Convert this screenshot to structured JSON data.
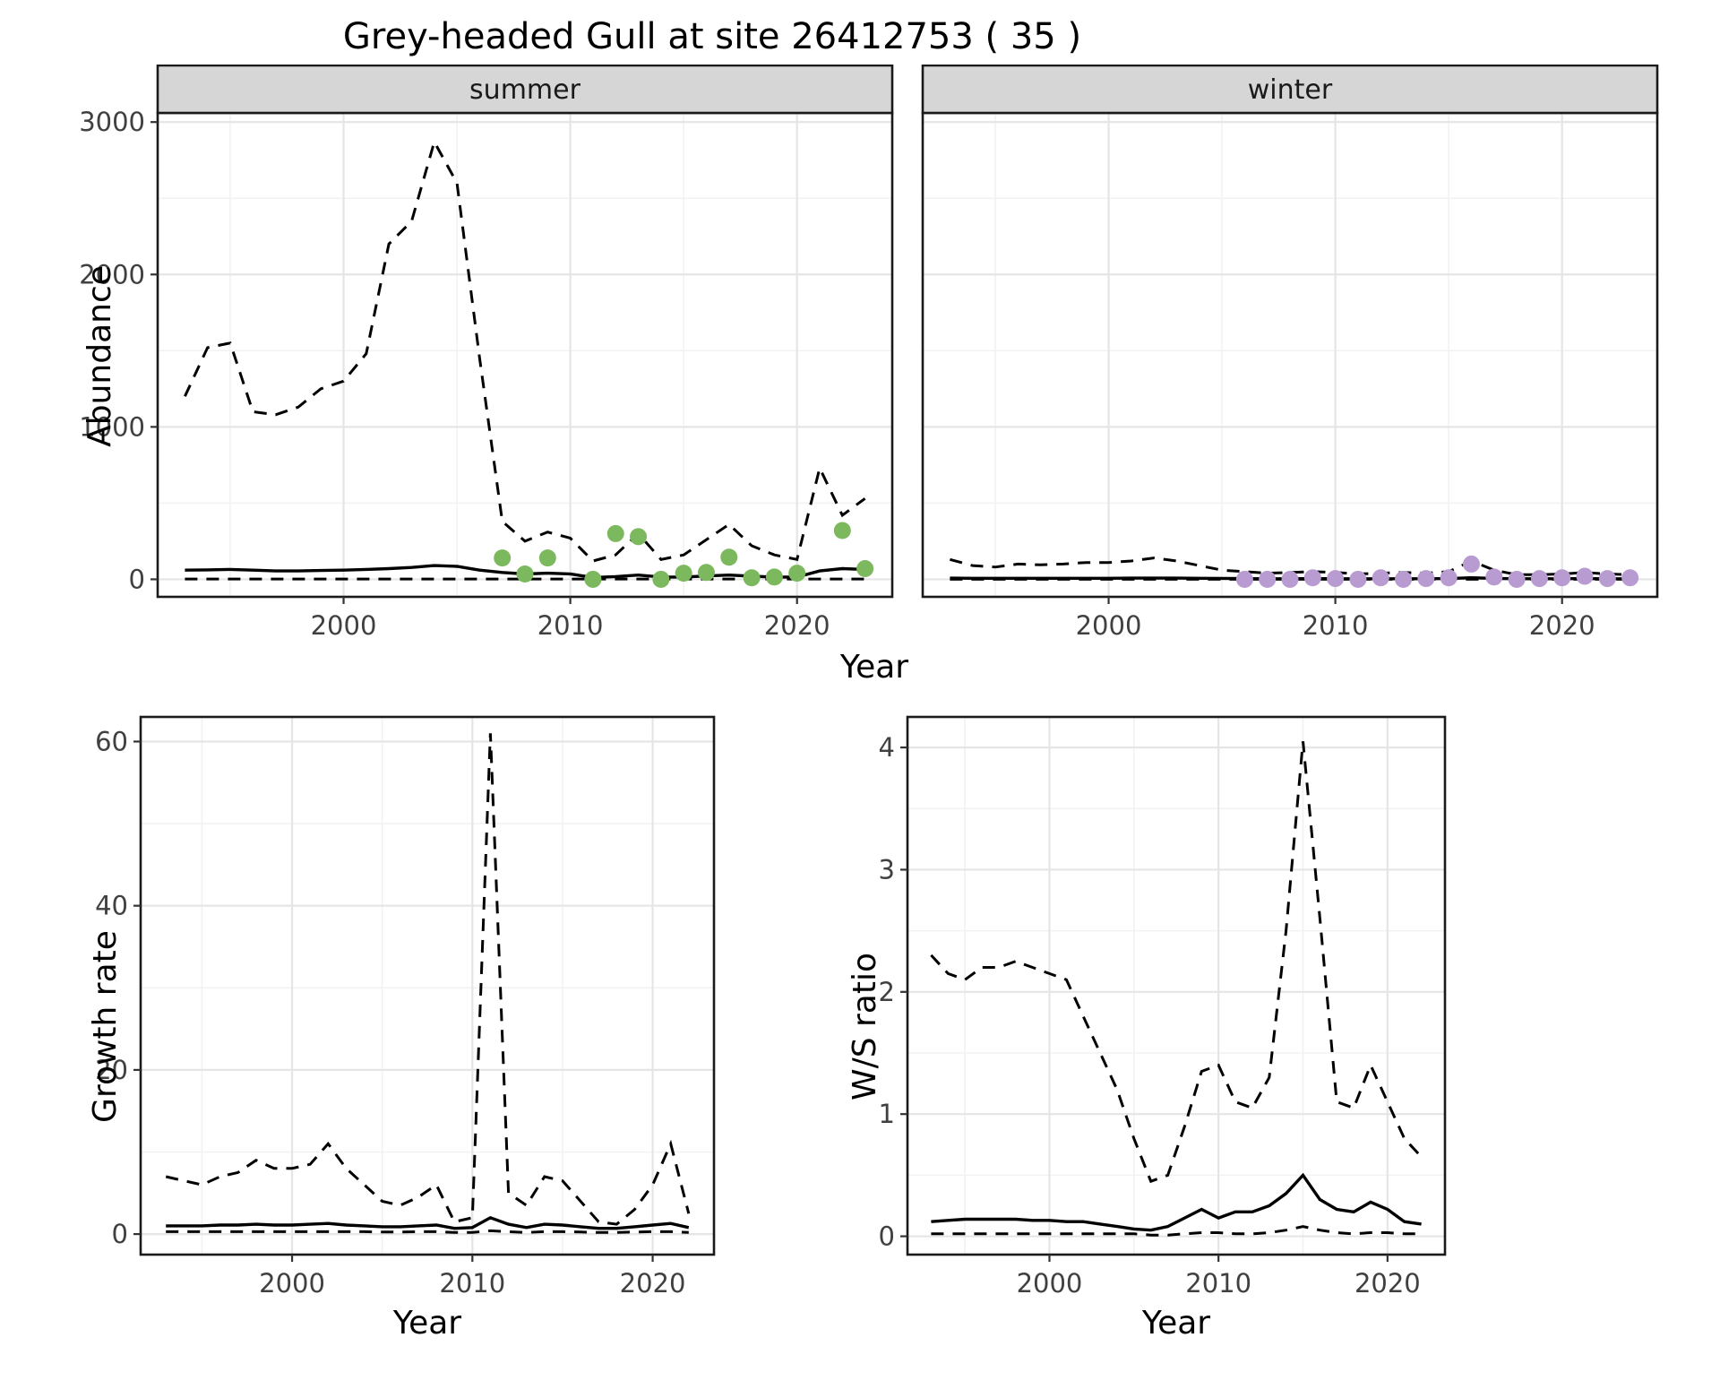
{
  "title": "Grey-headed Gull at site 26412753 ( 35 )",
  "top_row": {
    "ylabel": "Abundance",
    "xlabel": "Year",
    "facets": [
      "summer",
      "winter"
    ]
  },
  "bottom_row": {
    "growth_ylabel": "Growth rate",
    "ws_ylabel": "W/S ratio",
    "xlabel": "Year"
  },
  "colors": {
    "line": "#000000",
    "summer_points": "#7cb95e",
    "winter_points": "#b89bd1",
    "grid_major": "#e5e5e5",
    "grid_minor": "#f2f2f2",
    "strip_fill": "#d6d6d6",
    "strip_text": "#1a1a1a",
    "tick_label": "#404040",
    "tick_mark": "#333333",
    "border": "#1a1a1a",
    "panel_bg": "#ffffff"
  },
  "chart_data": [
    {
      "id": "abundance-summer",
      "type": "line",
      "facet": "summer",
      "xlabel": "Year",
      "ylabel": "Abundance",
      "xlim": [
        1991.8,
        2024.2
      ],
      "ylim": [
        -115,
        3060
      ],
      "xticks": [
        2000,
        2010,
        2020
      ],
      "yticks": [
        0,
        1000,
        2000,
        3000
      ],
      "xminor": [
        1995,
        2005,
        2015
      ],
      "yminor": [
        500,
        1500,
        2500
      ],
      "years": [
        1993,
        1994,
        1995,
        1996,
        1997,
        1998,
        1999,
        2000,
        2001,
        2002,
        2003,
        2004,
        2005,
        2006,
        2007,
        2008,
        2009,
        2010,
        2011,
        2012,
        2013,
        2014,
        2015,
        2016,
        2017,
        2018,
        2019,
        2020,
        2021,
        2022,
        2023
      ],
      "series": [
        {
          "name": "upper CI",
          "dashed": true,
          "values": [
            1200,
            1520,
            1550,
            1100,
            1080,
            1130,
            1250,
            1300,
            1480,
            2200,
            2350,
            2870,
            2600,
            1450,
            380,
            250,
            310,
            270,
            120,
            160,
            300,
            130,
            160,
            260,
            360,
            220,
            160,
            130,
            730,
            420,
            530
          ]
        },
        {
          "name": "median",
          "dashed": false,
          "values": [
            60,
            62,
            65,
            60,
            55,
            55,
            58,
            60,
            65,
            70,
            78,
            90,
            85,
            60,
            45,
            35,
            40,
            35,
            12,
            18,
            28,
            15,
            15,
            22,
            28,
            20,
            15,
            15,
            55,
            70,
            65
          ]
        },
        {
          "name": "lower CI",
          "dashed": true,
          "values": [
            2,
            2,
            2,
            2,
            2,
            2,
            2,
            2,
            2,
            2,
            2,
            2,
            2,
            2,
            2,
            2,
            2,
            2,
            2,
            2,
            2,
            2,
            2,
            2,
            2,
            2,
            2,
            2,
            2,
            2,
            2
          ]
        }
      ],
      "points": {
        "color_key": "summer_points",
        "years": [
          2007,
          2008,
          2009,
          2011,
          2012,
          2013,
          2014,
          2015,
          2016,
          2017,
          2018,
          2019,
          2020,
          2022,
          2023
        ],
        "values": [
          140,
          35,
          140,
          0,
          300,
          280,
          0,
          40,
          45,
          145,
          10,
          15,
          40,
          320,
          70
        ]
      }
    },
    {
      "id": "abundance-winter",
      "type": "line",
      "facet": "winter",
      "xlabel": "Year",
      "ylabel": "Abundance",
      "xlim": [
        1991.8,
        2024.2
      ],
      "ylim": [
        -115,
        3060
      ],
      "xticks": [
        2000,
        2010,
        2020
      ],
      "yticks": [
        0,
        1000,
        2000,
        3000
      ],
      "xminor": [
        1995,
        2005,
        2015
      ],
      "yminor": [
        500,
        1500,
        2500
      ],
      "years": [
        1993,
        1994,
        1995,
        1996,
        1997,
        1998,
        1999,
        2000,
        2001,
        2002,
        2003,
        2004,
        2005,
        2006,
        2007,
        2008,
        2009,
        2010,
        2011,
        2012,
        2013,
        2014,
        2015,
        2016,
        2017,
        2018,
        2019,
        2020,
        2021,
        2022,
        2023
      ],
      "series": [
        {
          "name": "upper CI",
          "dashed": true,
          "values": [
            130,
            90,
            80,
            100,
            95,
            100,
            110,
            110,
            120,
            140,
            120,
            90,
            60,
            50,
            40,
            45,
            50,
            45,
            35,
            40,
            45,
            40,
            50,
            120,
            60,
            30,
            30,
            35,
            45,
            35,
            30
          ]
        },
        {
          "name": "median",
          "dashed": false,
          "values": [
            8,
            7,
            7,
            7,
            7,
            7,
            7,
            7,
            8,
            8,
            8,
            7,
            6,
            5,
            4,
            4,
            5,
            4,
            4,
            4,
            4,
            4,
            5,
            10,
            6,
            4,
            4,
            4,
            5,
            4,
            4
          ]
        },
        {
          "name": "lower CI",
          "dashed": true,
          "values": [
            0,
            0,
            0,
            0,
            0,
            0,
            0,
            0,
            0,
            0,
            0,
            0,
            0,
            0,
            0,
            0,
            0,
            0,
            0,
            0,
            0,
            0,
            0,
            0,
            0,
            0,
            0,
            0,
            0,
            0,
            0
          ]
        }
      ],
      "points": {
        "color_key": "winter_points",
        "years": [
          2006,
          2007,
          2008,
          2009,
          2010,
          2011,
          2012,
          2013,
          2014,
          2015,
          2016,
          2017,
          2018,
          2019,
          2020,
          2021,
          2022,
          2023
        ],
        "values": [
          0,
          0,
          0,
          10,
          5,
          0,
          10,
          0,
          5,
          10,
          100,
          15,
          0,
          5,
          10,
          20,
          5,
          10
        ]
      }
    },
    {
      "id": "growth-rate",
      "type": "line",
      "xlabel": "Year",
      "ylabel": "Growth rate",
      "xlim": [
        1991.6,
        2023.4
      ],
      "ylim": [
        -2.5,
        63
      ],
      "xticks": [
        2000,
        2010,
        2020
      ],
      "yticks": [
        0,
        20,
        40,
        60
      ],
      "xminor": [
        1995,
        2005,
        2015
      ],
      "yminor": [
        10,
        30,
        50
      ],
      "years": [
        1993,
        1994,
        1995,
        1996,
        1997,
        1998,
        1999,
        2000,
        2001,
        2002,
        2003,
        2004,
        2005,
        2006,
        2007,
        2008,
        2009,
        2010,
        2011,
        2012,
        2013,
        2014,
        2015,
        2016,
        2017,
        2018,
        2019,
        2020,
        2021,
        2022
      ],
      "series": [
        {
          "name": "upper CI",
          "dashed": true,
          "values": [
            7,
            6.5,
            6,
            7,
            7.5,
            9,
            8,
            8,
            8.5,
            11,
            8,
            6,
            4,
            3.5,
            4.5,
            6,
            1.5,
            2,
            61,
            5,
            3.5,
            7,
            6.5,
            4,
            1.5,
            1.2,
            3,
            6,
            11,
            2.5
          ]
        },
        {
          "name": "median",
          "dashed": false,
          "values": [
            1,
            1,
            1,
            1.1,
            1.1,
            1.2,
            1.1,
            1.1,
            1.2,
            1.3,
            1.1,
            1,
            0.9,
            0.9,
            1,
            1.1,
            0.7,
            0.8,
            2,
            1.2,
            0.8,
            1.2,
            1.1,
            0.9,
            0.7,
            0.7,
            0.9,
            1.1,
            1.3,
            0.8
          ]
        },
        {
          "name": "lower CI",
          "dashed": true,
          "values": [
            0.3,
            0.3,
            0.3,
            0.3,
            0.3,
            0.3,
            0.3,
            0.3,
            0.3,
            0.3,
            0.3,
            0.3,
            0.25,
            0.25,
            0.3,
            0.3,
            0.2,
            0.2,
            0.4,
            0.3,
            0.2,
            0.3,
            0.3,
            0.25,
            0.2,
            0.2,
            0.25,
            0.3,
            0.3,
            0.2
          ]
        }
      ]
    },
    {
      "id": "ws-ratio",
      "type": "line",
      "xlabel": "Year",
      "ylabel": "W/S ratio",
      "xlim": [
        1991.6,
        2023.4
      ],
      "ylim": [
        -0.15,
        4.25
      ],
      "xticks": [
        2000,
        2010,
        2020
      ],
      "yticks": [
        0,
        1,
        2,
        3,
        4
      ],
      "xminor": [
        1995,
        2005,
        2015
      ],
      "yminor": [
        0.5,
        1.5,
        2.5,
        3.5
      ],
      "years": [
        1993,
        1994,
        1995,
        1996,
        1997,
        1998,
        1999,
        2000,
        2001,
        2002,
        2003,
        2004,
        2005,
        2006,
        2007,
        2008,
        2009,
        2010,
        2011,
        2012,
        2013,
        2014,
        2015,
        2016,
        2017,
        2018,
        2019,
        2020,
        2021,
        2022
      ],
      "series": [
        {
          "name": "upper CI",
          "dashed": true,
          "values": [
            2.3,
            2.15,
            2.1,
            2.2,
            2.2,
            2.25,
            2.2,
            2.15,
            2.1,
            1.8,
            1.5,
            1.2,
            0.8,
            0.45,
            0.5,
            0.9,
            1.35,
            1.4,
            1.1,
            1.05,
            1.3,
            2.5,
            4.05,
            2.6,
            1.1,
            1.05,
            1.4,
            1.1,
            0.8,
            0.65
          ]
        },
        {
          "name": "median",
          "dashed": false,
          "values": [
            0.12,
            0.13,
            0.14,
            0.14,
            0.14,
            0.14,
            0.13,
            0.13,
            0.12,
            0.12,
            0.1,
            0.08,
            0.06,
            0.05,
            0.08,
            0.15,
            0.22,
            0.15,
            0.2,
            0.2,
            0.25,
            0.35,
            0.5,
            0.3,
            0.22,
            0.2,
            0.28,
            0.22,
            0.12,
            0.1
          ]
        },
        {
          "name": "lower CI",
          "dashed": true,
          "values": [
            0.02,
            0.02,
            0.02,
            0.02,
            0.02,
            0.02,
            0.02,
            0.02,
            0.02,
            0.02,
            0.02,
            0.02,
            0.02,
            0.01,
            0.01,
            0.02,
            0.03,
            0.03,
            0.02,
            0.02,
            0.03,
            0.05,
            0.08,
            0.05,
            0.03,
            0.02,
            0.03,
            0.03,
            0.02,
            0.02
          ]
        }
      ]
    }
  ]
}
